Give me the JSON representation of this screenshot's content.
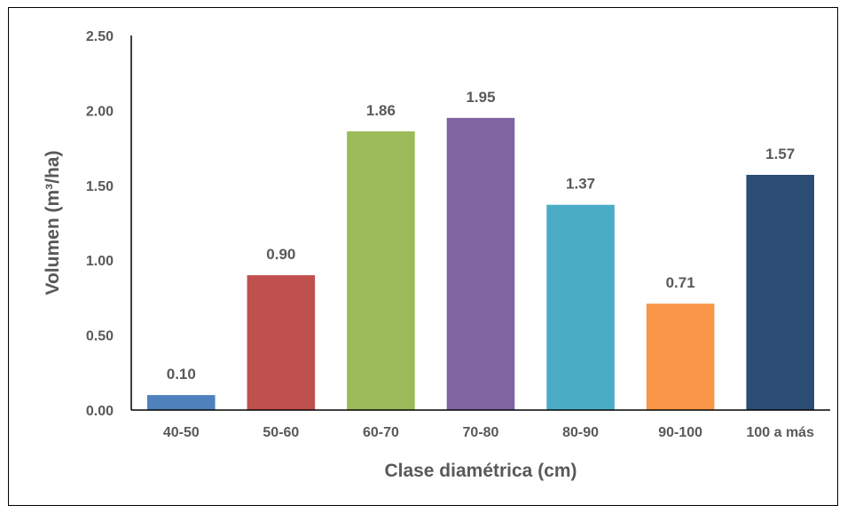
{
  "chart_data": {
    "type": "bar",
    "title": "",
    "xlabel": "Clase diamétrica (cm)",
    "ylabel": "Volumen (m³/ha)",
    "categories": [
      "40-50",
      "50-60",
      "60-70",
      "70-80",
      "80-90",
      "90-100",
      "100 a más"
    ],
    "values": [
      0.1,
      0.9,
      1.86,
      1.95,
      1.37,
      0.71,
      1.57
    ],
    "data_labels": [
      "0.10",
      "0.90",
      "1.86",
      "1.95",
      "1.37",
      "0.71",
      "1.57"
    ],
    "colors": [
      "#4f81bd",
      "#c0504d",
      "#9bbb59",
      "#8064a2",
      "#4bacc6",
      "#f79646",
      "#2c4d75"
    ],
    "ylim": [
      0,
      2.5
    ],
    "yticks": [
      "0.00",
      "0.50",
      "1.00",
      "1.50",
      "2.00",
      "2.50"
    ],
    "grid": false,
    "legend": "none"
  }
}
